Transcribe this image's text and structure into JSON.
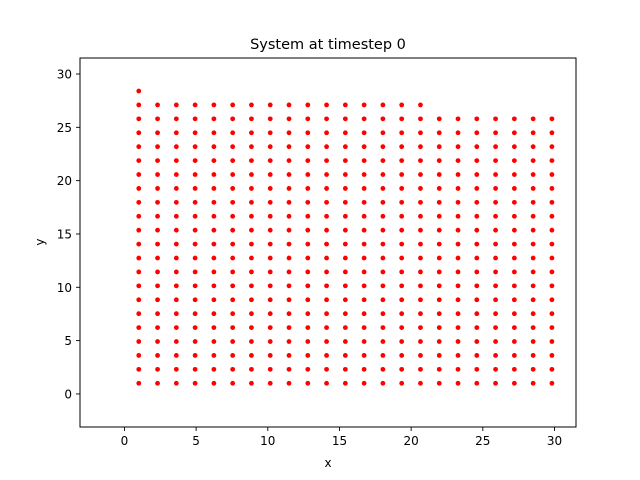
{
  "chart_data": {
    "type": "scatter",
    "title": "System at timestep 0",
    "xlabel": "x",
    "ylabel": "y",
    "xlim": [
      -3.1,
      31.5
    ],
    "ylim": [
      -3.1,
      31.5
    ],
    "xticks": [
      0,
      5,
      10,
      15,
      20,
      25,
      30
    ],
    "yticks": [
      0,
      5,
      10,
      15,
      20,
      25,
      30
    ],
    "marker_color": "#ff0000",
    "grid": false,
    "lattice": {
      "x_start": 1.0,
      "x_step": 1.31,
      "columns": 23,
      "y_start": 1.0,
      "y_step": 1.305,
      "rows_per_column": [
        22,
        21,
        21,
        21,
        21,
        21,
        21,
        21,
        21,
        21,
        21,
        21,
        21,
        21,
        21,
        21,
        20,
        20,
        20,
        20,
        20,
        20,
        20
      ]
    }
  }
}
